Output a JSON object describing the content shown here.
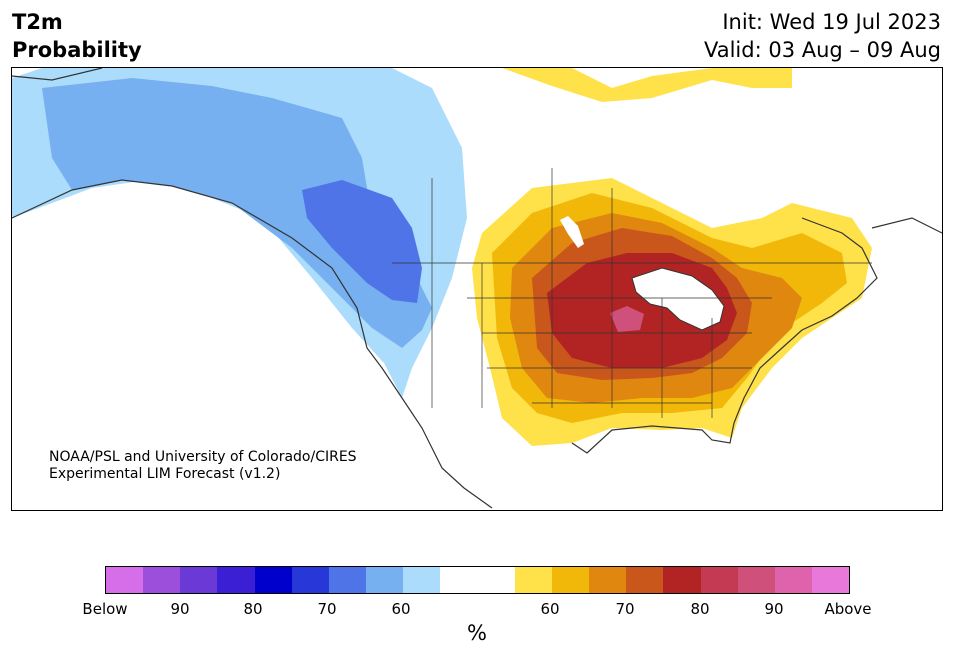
{
  "header": {
    "title_line1": "T2m",
    "title_line2": "Probability",
    "init": "Init: Wed 19 Jul 2023",
    "valid": "Valid: 03 Aug – 09 Aug"
  },
  "credit": {
    "line1": "NOAA/PSL and University of Colorado/CIRES",
    "line2": "Experimental LIM Forecast (v1.2)"
  },
  "colorbar": {
    "colors": [
      "#d56ee8",
      "#9b4fdb",
      "#6a39d6",
      "#3a1fd4",
      "#0000cc",
      "#2737d8",
      "#4e74e8",
      "#76b0f0",
      "#acdcfb",
      "#ffffff",
      "#ffffff",
      "#ffe14a",
      "#f1b80a",
      "#e0870f",
      "#c9561a",
      "#b22424",
      "#c33a52",
      "#cf507a",
      "#de62ac",
      "#e878da"
    ],
    "tick_labels": [
      "Below",
      "90",
      "80",
      "70",
      "60",
      "60",
      "70",
      "80",
      "90",
      "Above"
    ],
    "unit": "%"
  },
  "colors": {
    "coast": "#333333",
    "light_blue": "#acdcfb",
    "mid_blue": "#76b0f0",
    "blue": "#4e74e8",
    "yellow": "#ffe14a",
    "gold": "#f1b80a",
    "orange": "#e0870f",
    "dark_orange": "#c9561a",
    "red": "#b22424",
    "pink": "#cf507a"
  }
}
